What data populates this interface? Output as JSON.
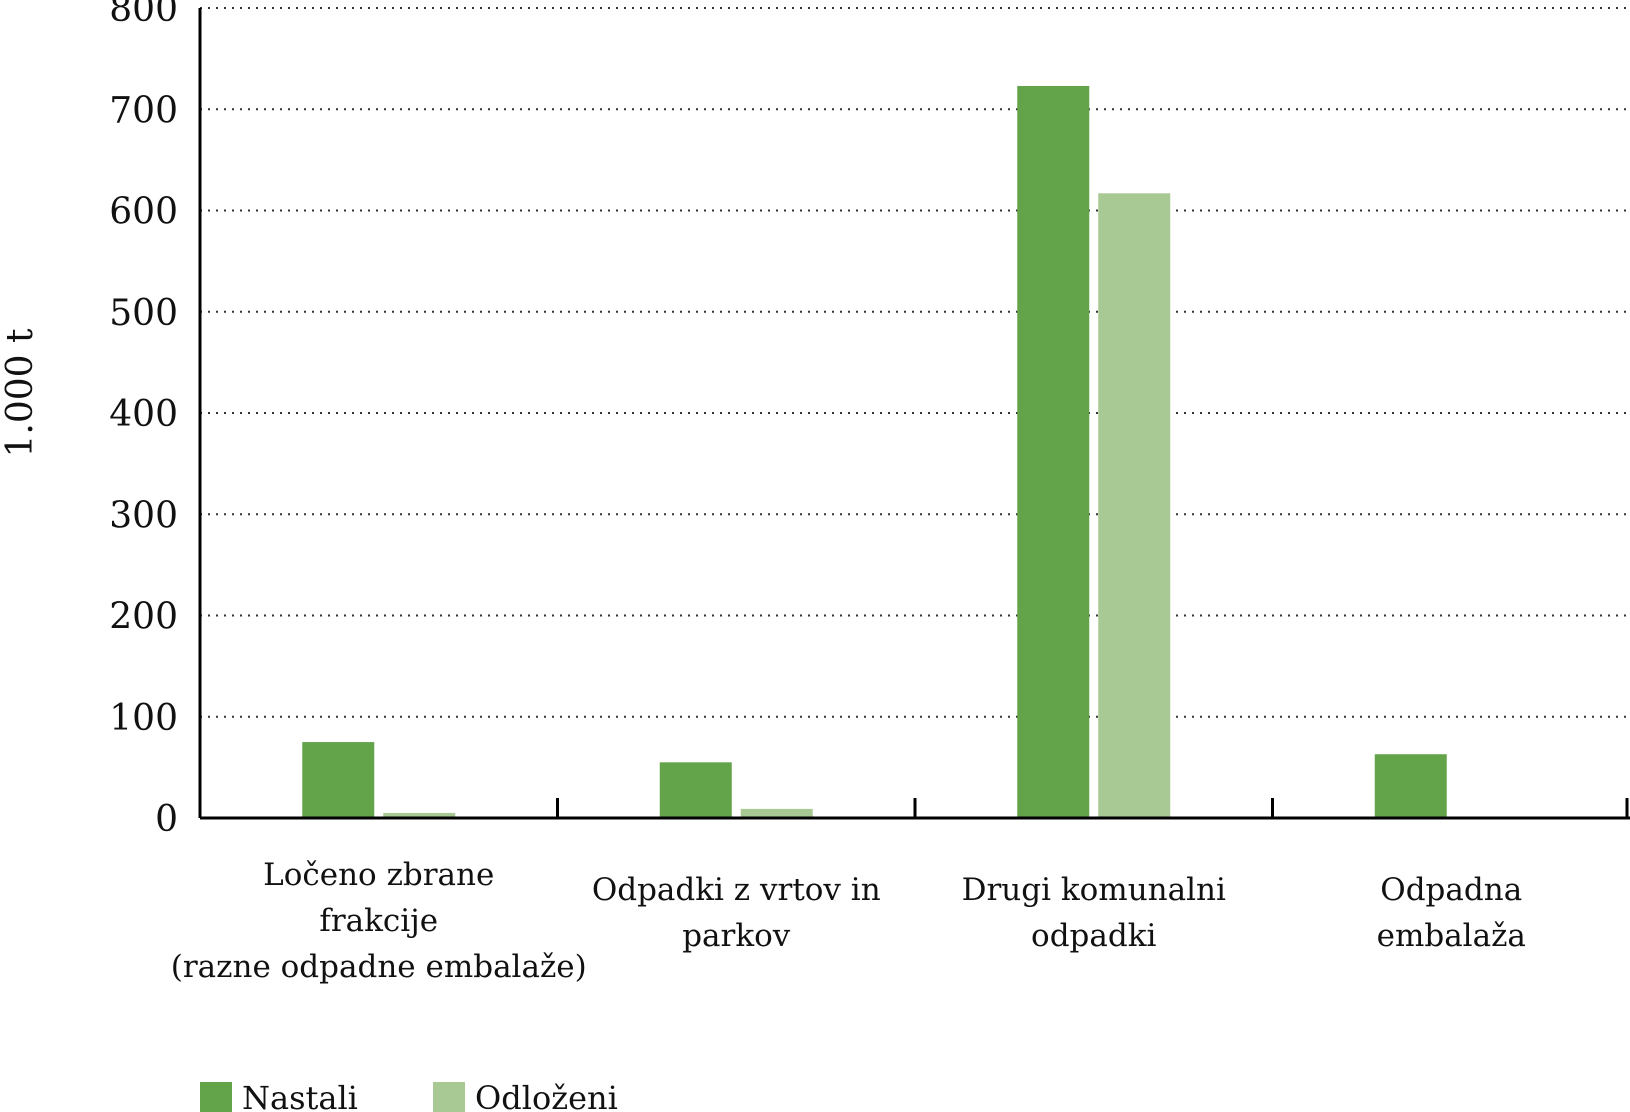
{
  "chart_data": {
    "type": "bar",
    "categories": [
      [
        "Ločeno zbrane",
        "frakcije",
        "(razne odpadne embalaže)"
      ],
      [
        "Odpadki z vrtov in",
        "parkov"
      ],
      [
        "Drugi komunalni",
        "odpadki"
      ],
      [
        "Odpadna",
        "embalaža"
      ]
    ],
    "series": [
      {
        "name": "Nastali",
        "color": "#63a34a",
        "values": [
          75,
          55,
          723,
          63
        ]
      },
      {
        "name": "Odloženi",
        "color": "#a9c994",
        "values": [
          5,
          9,
          617,
          null
        ]
      }
    ],
    "ylabel": "1.000 t",
    "ylim": [
      0,
      800
    ],
    "yticks": [
      0,
      100,
      200,
      300,
      400,
      500,
      600,
      700,
      800
    ],
    "grid": true,
    "grid_style": "dotted",
    "legend_position": "bottom-left"
  }
}
